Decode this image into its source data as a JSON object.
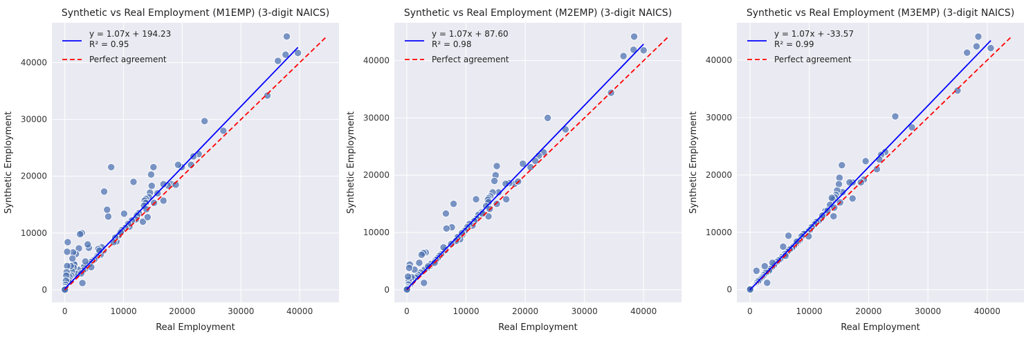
{
  "figure": {
    "background": "#ffffff",
    "axes_facecolor": "#eaeaf2",
    "grid_color": "#ffffff",
    "point_color": "#4c72b0",
    "point_edge_color": "#ffffff",
    "fit_line_color": "#0000ff",
    "agreement_line_color": "#ff0000"
  },
  "chart_data": [
    {
      "type": "scatter",
      "title": "Synthetic vs Real Employment (M1EMP) (3-digit NAICS)",
      "xlabel": "Real Employment",
      "ylabel": "Synthetic Employment",
      "xlim": [
        -2200,
        46700
      ],
      "ylim": [
        -2200,
        47000
      ],
      "xticks": [
        0,
        10000,
        20000,
        30000,
        40000
      ],
      "yticks": [
        0,
        10000,
        20000,
        30000,
        40000
      ],
      "grid": true,
      "legend_position": "upper-left",
      "fit": {
        "label": "y = 1.07x + 194.23",
        "r2_label": "R² = 0.95",
        "slope": 1.07,
        "intercept": 194.23,
        "x_range": [
          0,
          39700
        ]
      },
      "agreement": {
        "label": "Perfect agreement",
        "x_range": [
          0,
          44500
        ]
      },
      "points": [
        [
          37800,
          44600
        ],
        [
          37600,
          41400
        ],
        [
          39700,
          41700
        ],
        [
          36300,
          40300
        ],
        [
          34500,
          34200
        ],
        [
          27000,
          28000
        ],
        [
          23800,
          29700
        ],
        [
          22800,
          23900
        ],
        [
          21900,
          23500
        ],
        [
          21500,
          22000
        ],
        [
          19900,
          21600
        ],
        [
          19300,
          22000
        ],
        [
          18200,
          18600
        ],
        [
          18900,
          18500
        ],
        [
          17500,
          18400
        ],
        [
          16800,
          18600
        ],
        [
          16800,
          15700
        ],
        [
          15800,
          17000
        ],
        [
          15200,
          15300
        ],
        [
          15100,
          21600
        ],
        [
          14700,
          20300
        ],
        [
          14800,
          18300
        ],
        [
          14500,
          17100
        ],
        [
          14300,
          16300
        ],
        [
          13800,
          16000
        ],
        [
          13600,
          15700
        ],
        [
          13800,
          15300
        ],
        [
          13500,
          14800
        ],
        [
          13900,
          14200
        ],
        [
          13300,
          12000
        ],
        [
          14100,
          12800
        ],
        [
          12600,
          13500
        ],
        [
          12300,
          13100
        ],
        [
          12100,
          12400
        ],
        [
          11700,
          19000
        ],
        [
          11400,
          12200
        ],
        [
          11000,
          11100
        ],
        [
          10800,
          11600
        ],
        [
          10300,
          10900
        ],
        [
          10100,
          13400
        ],
        [
          9700,
          10500
        ],
        [
          9200,
          9600
        ],
        [
          8800,
          8500
        ],
        [
          8600,
          9200
        ],
        [
          8300,
          8400
        ],
        [
          7900,
          21600
        ],
        [
          7400,
          12900
        ],
        [
          7200,
          14100
        ],
        [
          6700,
          17300
        ],
        [
          6600,
          6900
        ],
        [
          6300,
          7500
        ],
        [
          6100,
          6200
        ],
        [
          5700,
          7200
        ],
        [
          5500,
          5900
        ],
        [
          5200,
          5500
        ],
        [
          5000,
          5300
        ],
        [
          4700,
          5100
        ],
        [
          4400,
          4900
        ],
        [
          4200,
          4600
        ],
        [
          4100,
          7400
        ],
        [
          3900,
          8000
        ],
        [
          3700,
          4300
        ],
        [
          3500,
          3700
        ],
        [
          3300,
          4100
        ],
        [
          3100,
          3400
        ],
        [
          2900,
          10000
        ],
        [
          2600,
          9800
        ],
        [
          2400,
          7300
        ],
        [
          2200,
          3600
        ],
        [
          2000,
          2800
        ],
        [
          1900,
          6300
        ],
        [
          1700,
          4400
        ],
        [
          1600,
          4500
        ],
        [
          1500,
          3900
        ],
        [
          1400,
          6600
        ],
        [
          1300,
          5500
        ],
        [
          1200,
          3300
        ],
        [
          1100,
          2500
        ],
        [
          1000,
          4200
        ],
        [
          900,
          1900
        ],
        [
          800,
          2300
        ],
        [
          700,
          1700
        ],
        [
          600,
          1400
        ],
        [
          500,
          8400
        ],
        [
          400,
          6700
        ],
        [
          400,
          4200
        ],
        [
          300,
          3100
        ],
        [
          250,
          2500
        ],
        [
          200,
          1600
        ],
        [
          150,
          900
        ],
        [
          100,
          500
        ],
        [
          60,
          200
        ],
        [
          30,
          80
        ],
        [
          10,
          20
        ],
        [
          3000,
          1200
        ],
        [
          3500,
          5000
        ],
        [
          4500,
          4000
        ],
        [
          5900,
          6900
        ],
        [
          2800,
          2900
        ],
        [
          9500,
          10100
        ]
      ]
    },
    {
      "type": "scatter",
      "title": "Synthetic vs Real Employment (M2EMP) (3-digit NAICS)",
      "xlabel": "Real Employment",
      "ylabel": "Synthetic Employment",
      "xlim": [
        -2100,
        46400
      ],
      "ylim": [
        -2200,
        46600
      ],
      "xticks": [
        0,
        10000,
        20000,
        30000,
        40000
      ],
      "yticks": [
        0,
        10000,
        20000,
        30000,
        40000
      ],
      "grid": true,
      "legend_position": "upper-left",
      "fit": {
        "label": "y = 1.07x + 87.60",
        "r2_label": "R² = 0.98",
        "slope": 1.07,
        "intercept": 87.6,
        "x_range": [
          0,
          40000
        ]
      },
      "agreement": {
        "label": "Perfect agreement",
        "x_range": [
          0,
          44200
        ]
      },
      "points": [
        [
          38400,
          44200
        ],
        [
          38300,
          41900
        ],
        [
          40000,
          41800
        ],
        [
          36600,
          40800
        ],
        [
          34500,
          34400
        ],
        [
          26800,
          28000
        ],
        [
          23800,
          30000
        ],
        [
          23100,
          24000
        ],
        [
          22300,
          23400
        ],
        [
          21700,
          22500
        ],
        [
          20900,
          21400
        ],
        [
          19600,
          22000
        ],
        [
          18200,
          18500
        ],
        [
          18800,
          18900
        ],
        [
          17300,
          18600
        ],
        [
          16700,
          18500
        ],
        [
          16800,
          15800
        ],
        [
          15500,
          17000
        ],
        [
          15200,
          15000
        ],
        [
          15200,
          21600
        ],
        [
          15000,
          20000
        ],
        [
          14800,
          19000
        ],
        [
          14500,
          17000
        ],
        [
          14100,
          16300
        ],
        [
          13800,
          16000
        ],
        [
          13700,
          15700
        ],
        [
          13800,
          15300
        ],
        [
          13400,
          14600
        ],
        [
          14000,
          14100
        ],
        [
          13800,
          12800
        ],
        [
          12600,
          13500
        ],
        [
          12100,
          13100
        ],
        [
          11800,
          12400
        ],
        [
          11700,
          15800
        ],
        [
          11400,
          12000
        ],
        [
          11100,
          11200
        ],
        [
          10600,
          11500
        ],
        [
          10200,
          10900
        ],
        [
          9800,
          10300
        ],
        [
          9400,
          9600
        ],
        [
          9000,
          8800
        ],
        [
          8600,
          9200
        ],
        [
          8300,
          8500
        ],
        [
          7900,
          15000
        ],
        [
          7600,
          10900
        ],
        [
          6700,
          10700
        ],
        [
          6600,
          13300
        ],
        [
          6500,
          6900
        ],
        [
          6200,
          7400
        ],
        [
          5800,
          6200
        ],
        [
          5500,
          5900
        ],
        [
          5200,
          5500
        ],
        [
          4900,
          5200
        ],
        [
          4600,
          4900
        ],
        [
          4300,
          4600
        ],
        [
          4100,
          4500
        ],
        [
          3800,
          4000
        ],
        [
          3500,
          3800
        ],
        [
          3200,
          6500
        ],
        [
          3000,
          3500
        ],
        [
          2800,
          6400
        ],
        [
          2500,
          6100
        ],
        [
          2300,
          3000
        ],
        [
          2100,
          4700
        ],
        [
          1900,
          2600
        ],
        [
          1700,
          2300
        ],
        [
          1500,
          2100
        ],
        [
          1300,
          3500
        ],
        [
          1100,
          1800
        ],
        [
          900,
          1400
        ],
        [
          800,
          2200
        ],
        [
          600,
          1000
        ],
        [
          500,
          4400
        ],
        [
          400,
          3800
        ],
        [
          300,
          1700
        ],
        [
          250,
          900
        ],
        [
          200,
          2300
        ],
        [
          150,
          500
        ],
        [
          100,
          300
        ],
        [
          50,
          100
        ],
        [
          20,
          40
        ],
        [
          2900,
          1200
        ],
        [
          3600,
          4100
        ],
        [
          4700,
          4700
        ],
        [
          7500,
          8000
        ],
        [
          9300,
          9900
        ],
        [
          12800,
          13300
        ]
      ]
    },
    {
      "type": "scatter",
      "title": "Synthetic vs Real Employment (M3EMP) (3-digit NAICS)",
      "xlabel": "Real Employment",
      "ylabel": "Synthetic Employment",
      "xlim": [
        -2200,
        46200
      ],
      "ylim": [
        -2200,
        46500
      ],
      "xticks": [
        0,
        10000,
        20000,
        30000,
        40000
      ],
      "yticks": [
        0,
        10000,
        20000,
        30000,
        40000
      ],
      "grid": true,
      "legend_position": "upper-left",
      "fit": {
        "label": "y = 1.07x + -33.57",
        "r2_label": "R² = 0.99",
        "slope": 1.07,
        "intercept": -33.57,
        "x_range": [
          0,
          40600
        ]
      },
      "agreement": {
        "label": "Perfect agreement",
        "x_range": [
          0,
          44000
        ]
      },
      "points": [
        [
          38500,
          44100
        ],
        [
          38200,
          42400
        ],
        [
          40600,
          42100
        ],
        [
          36600,
          41300
        ],
        [
          35000,
          34700
        ],
        [
          27300,
          28300
        ],
        [
          24500,
          30200
        ],
        [
          22800,
          24000
        ],
        [
          22100,
          23500
        ],
        [
          21800,
          22700
        ],
        [
          21400,
          21000
        ],
        [
          19500,
          22400
        ],
        [
          19200,
          19200
        ],
        [
          18700,
          18700
        ],
        [
          17300,
          18700
        ],
        [
          17300,
          15900
        ],
        [
          16800,
          18700
        ],
        [
          15600,
          17000
        ],
        [
          15500,
          21700
        ],
        [
          15200,
          15200
        ],
        [
          15100,
          19500
        ],
        [
          15000,
          18400
        ],
        [
          14700,
          17300
        ],
        [
          14500,
          16500
        ],
        [
          14300,
          16100
        ],
        [
          14000,
          15700
        ],
        [
          13800,
          16000
        ],
        [
          13500,
          14800
        ],
        [
          14200,
          14300
        ],
        [
          14100,
          12800
        ],
        [
          12700,
          13700
        ],
        [
          12500,
          13100
        ],
        [
          12000,
          12400
        ],
        [
          11600,
          12000
        ],
        [
          11200,
          11800
        ],
        [
          10900,
          11400
        ],
        [
          10400,
          10900
        ],
        [
          10100,
          10400
        ],
        [
          9700,
          10100
        ],
        [
          9300,
          9800
        ],
        [
          9100,
          9700
        ],
        [
          8700,
          9300
        ],
        [
          8400,
          8600
        ],
        [
          8100,
          8300
        ],
        [
          7800,
          8000
        ],
        [
          7400,
          7600
        ],
        [
          7100,
          7300
        ],
        [
          6700,
          7000
        ],
        [
          6500,
          9400
        ],
        [
          6300,
          6600
        ],
        [
          5900,
          6200
        ],
        [
          5600,
          7500
        ],
        [
          5400,
          5700
        ],
        [
          5100,
          5300
        ],
        [
          4800,
          5100
        ],
        [
          4500,
          4800
        ],
        [
          4200,
          4500
        ],
        [
          4000,
          4200
        ],
        [
          3700,
          3900
        ],
        [
          3400,
          3600
        ],
        [
          3200,
          3300
        ],
        [
          2900,
          1200
        ],
        [
          2700,
          3000
        ],
        [
          2500,
          4100
        ],
        [
          2300,
          2500
        ],
        [
          2100,
          2200
        ],
        [
          1900,
          2000
        ],
        [
          1700,
          1800
        ],
        [
          1500,
          1600
        ],
        [
          1300,
          1400
        ],
        [
          1100,
          3300
        ],
        [
          1000,
          1100
        ],
        [
          800,
          900
        ],
        [
          700,
          750
        ],
        [
          550,
          600
        ],
        [
          450,
          500
        ],
        [
          350,
          400
        ],
        [
          250,
          300
        ],
        [
          150,
          200
        ],
        [
          80,
          100
        ],
        [
          30,
          40
        ],
        [
          9900,
          9300
        ],
        [
          12200,
          12900
        ],
        [
          13100,
          13800
        ],
        [
          3800,
          4700
        ],
        [
          6000,
          5900
        ],
        [
          7900,
          8400
        ]
      ]
    }
  ]
}
